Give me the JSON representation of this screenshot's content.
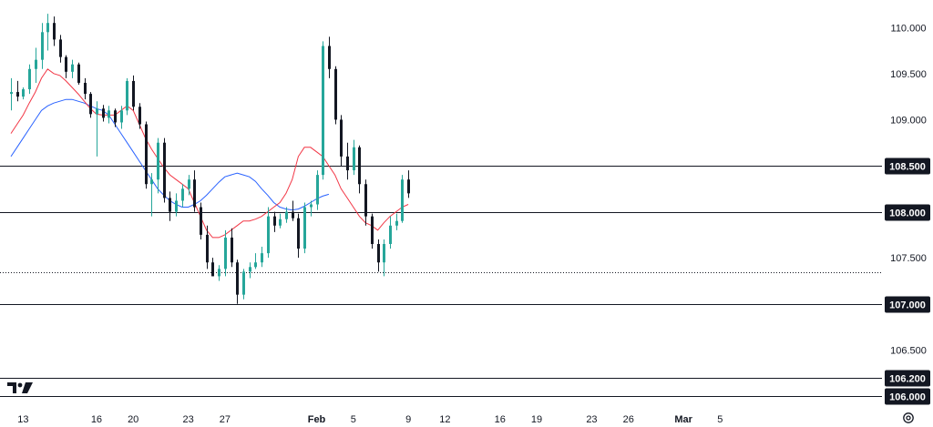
{
  "chart_data": {
    "type": "candlestick",
    "title": "",
    "y_axis": {
      "ticks": [
        110.0,
        109.5,
        109.0,
        107.5,
        106.5
      ],
      "tick_labels": [
        "110.000",
        "109.500",
        "109.000",
        "107.500",
        "106.500"
      ],
      "range": [
        105.95,
        110.22
      ]
    },
    "x_axis": {
      "ticks": [
        {
          "label": "13",
          "index": 2
        },
        {
          "label": "16",
          "index": 14
        },
        {
          "label": "20",
          "index": 20
        },
        {
          "label": "23",
          "index": 29
        },
        {
          "label": "27",
          "index": 35
        },
        {
          "label": "Feb",
          "index": 50
        },
        {
          "label": "5",
          "index": 56
        },
        {
          "label": "9",
          "index": 65
        },
        {
          "label": "12",
          "index": 71
        },
        {
          "label": "16",
          "index": 80
        },
        {
          "label": "19",
          "index": 86
        },
        {
          "label": "23",
          "index": 95
        },
        {
          "label": "26",
          "index": 101
        },
        {
          "label": "Mar",
          "index": 110
        },
        {
          "label": "5",
          "index": 116
        }
      ]
    },
    "horizontal_levels": [
      {
        "value": 108.5,
        "label": "108.500"
      },
      {
        "value": 108.0,
        "label": "108.000"
      },
      {
        "value": 107.0,
        "label": "107.000"
      },
      {
        "value": 106.2,
        "label": "106.200"
      },
      {
        "value": 106.0,
        "label": "106.000"
      }
    ],
    "current_price_line": 107.34,
    "series_colors": {
      "up": "#26a69a",
      "down": "#131722",
      "ma_fast": "#f23645",
      "ma_slow": "#2962ff"
    },
    "candles": [
      [
        109.28,
        109.45,
        109.1,
        109.3
      ],
      [
        109.3,
        109.42,
        109.2,
        109.25
      ],
      [
        109.25,
        109.35,
        109.22,
        109.33
      ],
      [
        109.33,
        109.6,
        109.28,
        109.55
      ],
      [
        109.55,
        109.78,
        109.4,
        109.65
      ],
      [
        109.65,
        110.05,
        109.55,
        109.95
      ],
      [
        109.95,
        110.15,
        109.75,
        110.05
      ],
      [
        110.05,
        110.12,
        109.8,
        109.87
      ],
      [
        109.87,
        109.92,
        109.62,
        109.68
      ],
      [
        109.68,
        109.7,
        109.45,
        109.52
      ],
      [
        109.52,
        109.65,
        109.45,
        109.6
      ],
      [
        109.6,
        109.62,
        109.38,
        109.4
      ],
      [
        109.4,
        109.45,
        109.22,
        109.28
      ],
      [
        109.28,
        109.3,
        109.02,
        109.06
      ],
      [
        109.06,
        109.2,
        108.6,
        109.12
      ],
      [
        109.12,
        109.16,
        108.98,
        109.02
      ],
      [
        109.02,
        109.15,
        108.96,
        109.1
      ],
      [
        109.1,
        109.12,
        108.92,
        108.97
      ],
      [
        108.97,
        109.15,
        108.9,
        109.1
      ],
      [
        109.1,
        109.45,
        109.05,
        109.42
      ],
      [
        109.42,
        109.48,
        109.1,
        109.14
      ],
      [
        109.14,
        109.18,
        108.9,
        108.95
      ],
      [
        108.95,
        108.98,
        108.25,
        108.3
      ],
      [
        108.3,
        108.42,
        107.95,
        108.35
      ],
      [
        108.35,
        108.8,
        108.2,
        108.75
      ],
      [
        108.75,
        108.8,
        108.1,
        108.15
      ],
      [
        108.15,
        108.22,
        107.9,
        108.0
      ],
      [
        108.0,
        108.2,
        107.95,
        108.12
      ],
      [
        108.12,
        108.3,
        108.05,
        108.25
      ],
      [
        108.25,
        108.4,
        108.18,
        108.35
      ],
      [
        108.35,
        108.45,
        108.0,
        108.05
      ],
      [
        108.05,
        108.1,
        107.7,
        107.75
      ],
      [
        107.75,
        107.85,
        107.38,
        107.45
      ],
      [
        107.45,
        107.5,
        107.3,
        107.3
      ],
      [
        107.3,
        107.42,
        107.25,
        107.38
      ],
      [
        107.38,
        107.8,
        107.3,
        107.72
      ],
      [
        107.72,
        107.82,
        107.4,
        107.45
      ],
      [
        107.45,
        107.48,
        107.0,
        107.1
      ],
      [
        107.1,
        107.38,
        107.05,
        107.35
      ],
      [
        107.35,
        107.45,
        107.28,
        107.4
      ],
      [
        107.4,
        107.55,
        107.38,
        107.45
      ],
      [
        107.45,
        107.62,
        107.4,
        107.55
      ],
      [
        107.55,
        108.05,
        107.5,
        107.95
      ],
      [
        107.95,
        108.0,
        107.78,
        107.85
      ],
      [
        107.85,
        107.98,
        107.82,
        107.92
      ],
      [
        107.92,
        108.05,
        107.88,
        108.0
      ],
      [
        108.0,
        108.12,
        107.9,
        107.93
      ],
      [
        107.93,
        107.98,
        107.5,
        107.6
      ],
      [
        107.6,
        108.1,
        107.55,
        108.05
      ],
      [
        108.05,
        108.12,
        107.95,
        108.08
      ],
      [
        108.08,
        108.45,
        108.02,
        108.4
      ],
      [
        108.4,
        109.85,
        108.35,
        109.8
      ],
      [
        109.8,
        109.9,
        109.45,
        109.55
      ],
      [
        109.55,
        109.58,
        108.95,
        109.0
      ],
      [
        109.0,
        109.05,
        108.5,
        108.6
      ],
      [
        108.6,
        108.75,
        108.35,
        108.45
      ],
      [
        108.45,
        108.78,
        108.4,
        108.7
      ],
      [
        108.7,
        108.72,
        108.2,
        108.3
      ],
      [
        108.3,
        108.35,
        107.85,
        107.95
      ],
      [
        107.95,
        107.98,
        107.6,
        107.65
      ],
      [
        107.65,
        107.7,
        107.35,
        107.45
      ],
      [
        107.45,
        107.7,
        107.3,
        107.65
      ],
      [
        107.65,
        107.95,
        107.6,
        107.85
      ],
      [
        107.85,
        107.98,
        107.8,
        107.9
      ],
      [
        107.9,
        108.4,
        107.88,
        108.35
      ],
      [
        108.35,
        108.45,
        108.15,
        108.2
      ]
    ],
    "ma_fast": [
      108.85,
      108.95,
      109.05,
      109.18,
      109.3,
      109.45,
      109.55,
      109.5,
      109.48,
      109.42,
      109.35,
      109.28,
      109.2,
      109.12,
      109.06,
      109.05,
      109.05,
      109.05,
      109.1,
      109.15,
      109.1,
      108.95,
      108.8,
      108.68,
      108.58,
      108.48,
      108.4,
      108.35,
      108.3,
      108.25,
      108.1,
      107.95,
      107.8,
      107.72,
      107.72,
      107.75,
      107.8,
      107.85,
      107.9,
      107.9,
      107.92,
      107.95,
      108.0,
      108.05,
      108.1,
      108.2,
      108.35,
      108.6,
      108.7,
      108.7,
      108.65,
      108.6,
      108.5,
      108.4,
      108.25,
      108.15,
      108.05,
      107.95,
      107.88,
      107.85,
      107.8,
      107.88,
      107.95,
      108.0,
      108.05,
      108.08
    ],
    "ma_slow": [
      108.6,
      108.7,
      108.8,
      108.9,
      109.0,
      109.1,
      109.15,
      109.18,
      109.2,
      109.22,
      109.22,
      109.2,
      109.18,
      109.15,
      109.12,
      109.1,
      109.05,
      108.95,
      108.85,
      108.75,
      108.65,
      108.55,
      108.45,
      108.35,
      108.25,
      108.18,
      108.12,
      108.08,
      108.05,
      108.05,
      108.08,
      108.12,
      108.18,
      108.25,
      108.32,
      108.38,
      108.4,
      108.42,
      108.4,
      108.38,
      108.33,
      108.25,
      108.18,
      108.1,
      108.05,
      108.03,
      108.02,
      108.03,
      108.06,
      108.1,
      108.14,
      108.17,
      108.19
    ]
  }
}
